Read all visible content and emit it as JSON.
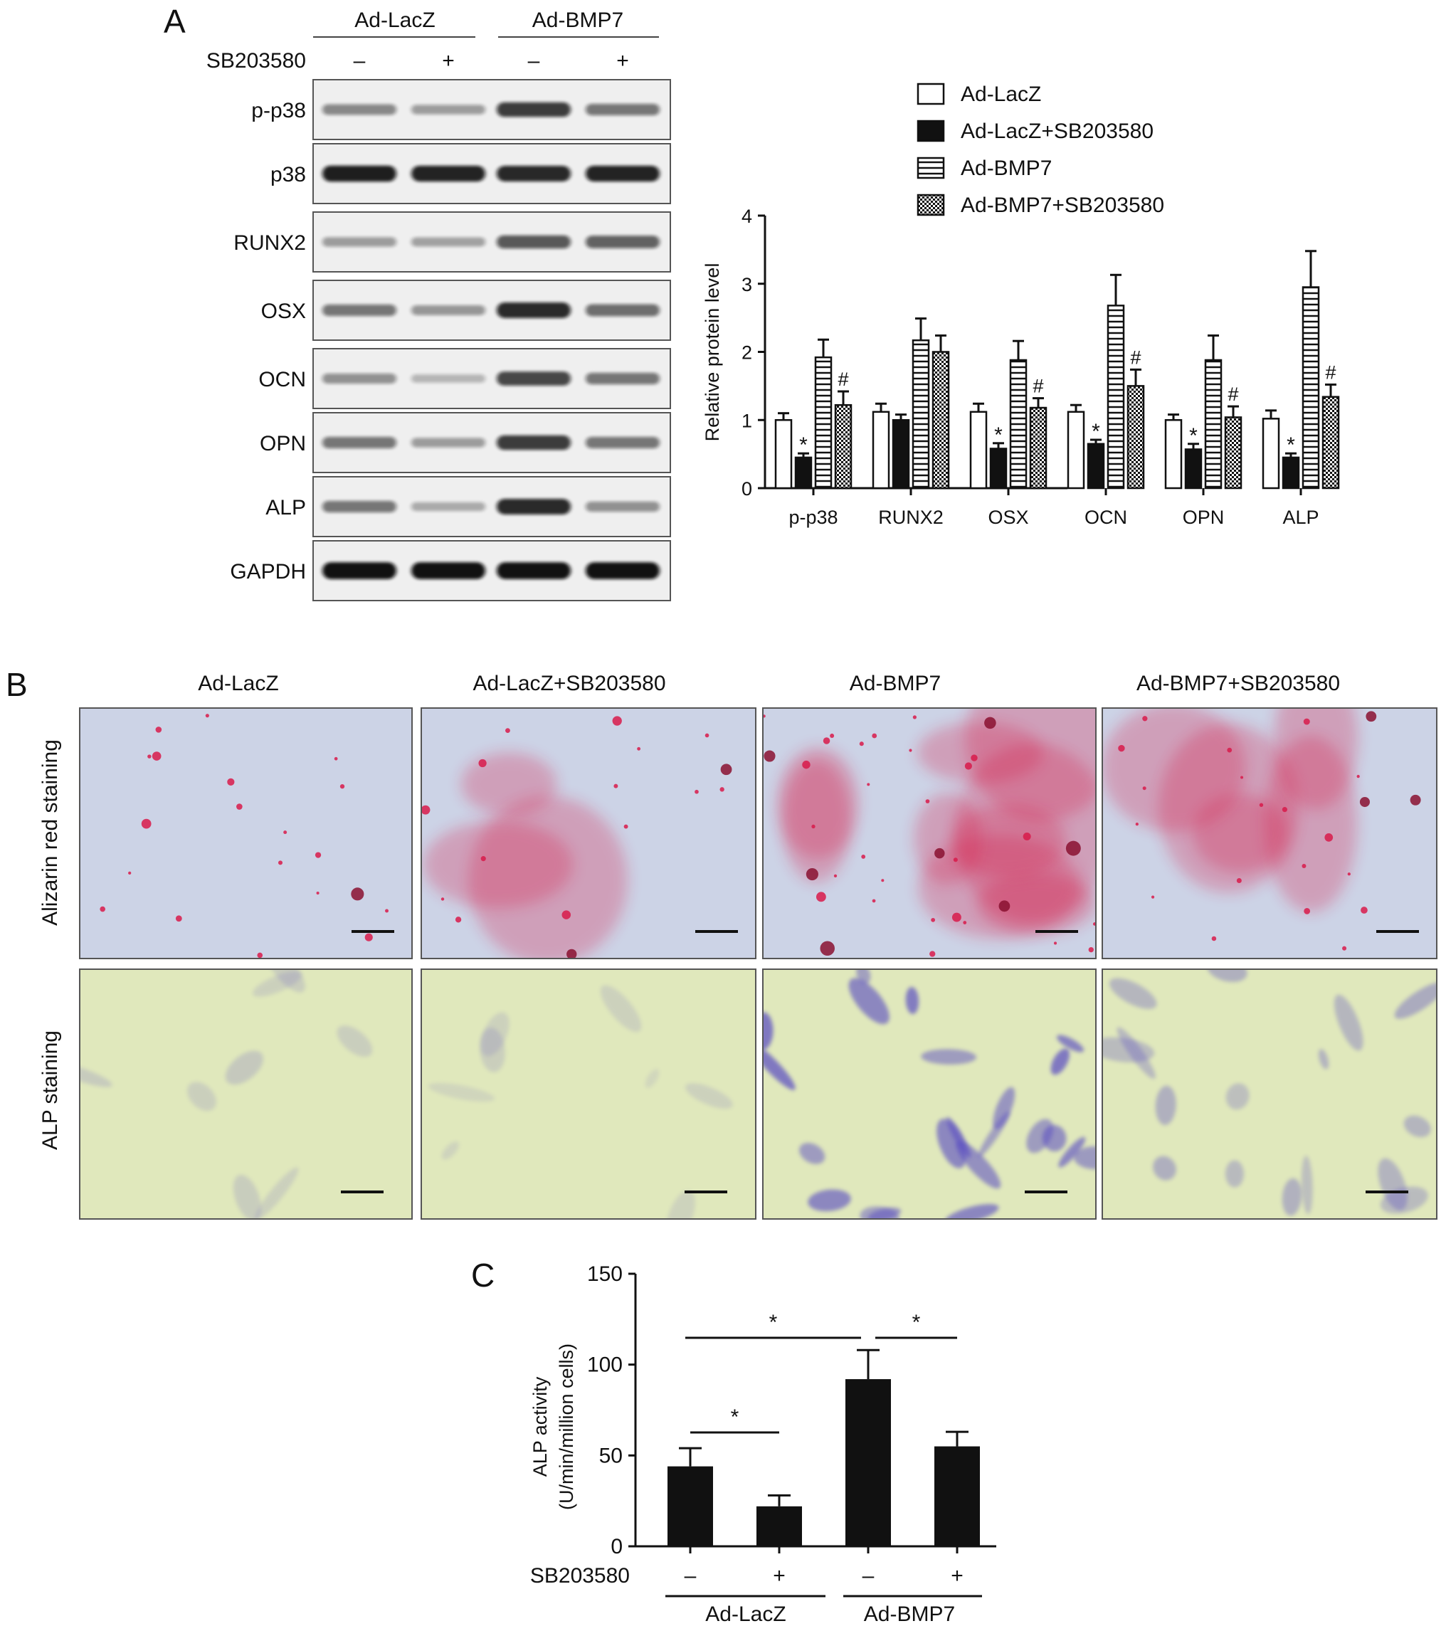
{
  "panelA": {
    "letter": "A",
    "groups": [
      "Ad-LacZ",
      "Ad-BMP7"
    ],
    "treatment_label": "SB203580",
    "signs": [
      "–",
      "+",
      "–",
      "+"
    ],
    "blot_rows": [
      "p-p38",
      "p38",
      "RUNX2",
      "OSX",
      "OCN",
      "OPN",
      "ALP",
      "GAPDH"
    ],
    "band_intensity": [
      [
        0.35,
        0.25,
        0.75,
        0.45
      ],
      [
        0.9,
        0.88,
        0.86,
        0.88
      ],
      [
        0.25,
        0.22,
        0.6,
        0.55
      ],
      [
        0.45,
        0.28,
        0.85,
        0.5
      ],
      [
        0.3,
        0.12,
        0.7,
        0.45
      ],
      [
        0.45,
        0.25,
        0.75,
        0.45
      ],
      [
        0.45,
        0.18,
        0.85,
        0.3
      ],
      [
        0.98,
        0.98,
        0.98,
        0.98
      ]
    ]
  },
  "chart_data": [
    {
      "type": "bar",
      "xlabel": "",
      "ylabel": "Relative protein level",
      "ylim": [
        0,
        4
      ],
      "yticks": [
        0,
        1,
        2,
        3,
        4
      ],
      "categories": [
        "p-p38",
        "RUNX2",
        "OSX",
        "OCN",
        "OPN",
        "ALP"
      ],
      "legend_position": "top-right",
      "series": [
        {
          "name": "Ad-LacZ",
          "pattern": "white",
          "values": [
            1.0,
            1.12,
            1.12,
            1.12,
            1.0,
            1.02
          ],
          "errors": [
            0.1,
            0.12,
            0.12,
            0.1,
            0.08,
            0.12
          ]
        },
        {
          "name": "Ad-LacZ+SB203580",
          "pattern": "black",
          "values": [
            0.45,
            1.0,
            0.58,
            0.65,
            0.57,
            0.45
          ],
          "errors": [
            0.06,
            0.08,
            0.08,
            0.06,
            0.08,
            0.06
          ]
        },
        {
          "name": "Ad-BMP7",
          "pattern": "hstripe",
          "values": [
            1.92,
            2.17,
            1.88,
            2.68,
            1.88,
            2.95
          ],
          "errors": [
            0.26,
            0.32,
            0.28,
            0.45,
            0.36,
            0.53
          ]
        },
        {
          "name": "Ad-BMP7+SB203580",
          "pattern": "dots",
          "values": [
            1.22,
            2.0,
            1.18,
            1.5,
            1.04,
            1.34
          ],
          "errors": [
            0.2,
            0.24,
            0.14,
            0.24,
            0.16,
            0.18
          ]
        }
      ],
      "annotations": [
        {
          "series": 1,
          "category": 0,
          "text": "*"
        },
        {
          "series": 1,
          "category": 2,
          "text": "*"
        },
        {
          "series": 1,
          "category": 3,
          "text": "*"
        },
        {
          "series": 1,
          "category": 4,
          "text": "*"
        },
        {
          "series": 1,
          "category": 5,
          "text": "*"
        },
        {
          "series": 3,
          "category": 0,
          "text": "#"
        },
        {
          "series": 3,
          "category": 2,
          "text": "#"
        },
        {
          "series": 3,
          "category": 3,
          "text": "#"
        },
        {
          "series": 3,
          "category": 4,
          "text": "#"
        },
        {
          "series": 3,
          "category": 5,
          "text": "#"
        }
      ]
    },
    {
      "type": "bar",
      "xlabel": "",
      "ylabel": "ALP activity (U/min/million cells)",
      "ylabel_lines": [
        "ALP activity",
        "(U/min/million cells)"
      ],
      "ylim": [
        0,
        150
      ],
      "yticks": [
        0,
        50,
        100,
        150
      ],
      "categories": [
        "–",
        "+",
        "–",
        "+"
      ],
      "row_label": "SB203580",
      "groups": [
        "Ad-LacZ",
        "Ad-BMP7"
      ],
      "values": [
        44,
        22,
        92,
        55
      ],
      "errors": [
        10,
        6,
        16,
        8
      ],
      "significance": [
        {
          "from": 0,
          "to": 1,
          "text": "*"
        },
        {
          "from": 0,
          "to": 2,
          "text": "*"
        },
        {
          "from": 2,
          "to": 3,
          "text": "*"
        }
      ]
    }
  ],
  "panelB": {
    "letter": "B",
    "columns": [
      "Ad-LacZ",
      "Ad-LacZ+SB203580",
      "Ad-BMP7",
      "Ad-BMP7+SB203580"
    ],
    "rows": [
      "Alizarin red staining",
      "ALP staining"
    ]
  },
  "panelC": {
    "letter": "C"
  },
  "colors": {
    "alizarin_bg": "#ccd3e6",
    "alizarin_red": "#d81a4a",
    "alp_bg": "#e0e8bc",
    "alp_purple": "#5b4fc2",
    "blot_bg": "#efefef"
  }
}
